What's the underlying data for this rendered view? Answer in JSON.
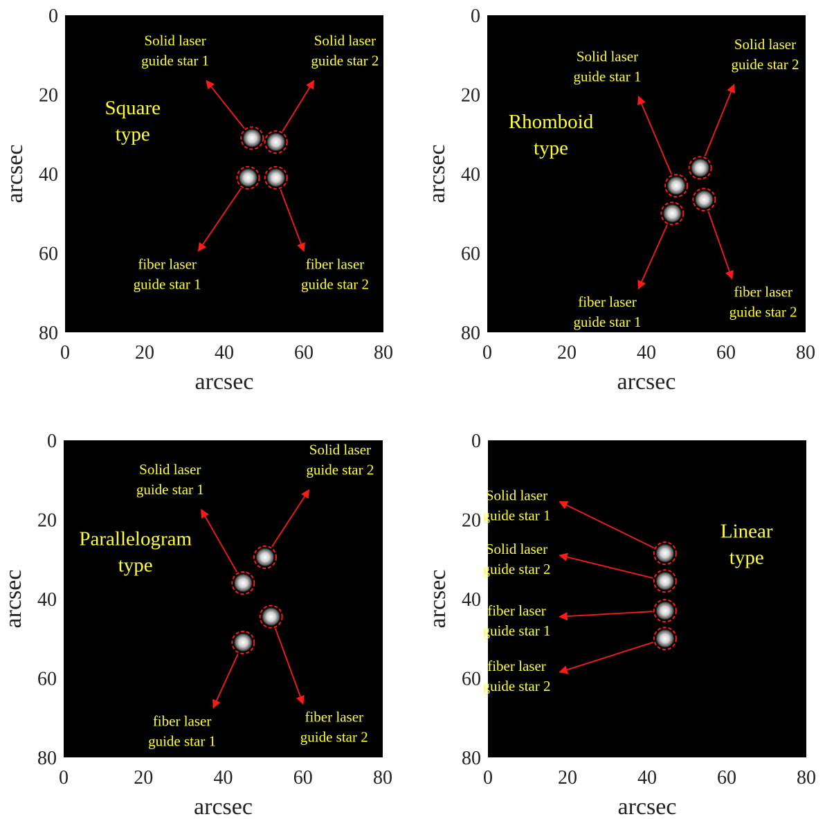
{
  "figure": {
    "colors": {
      "background": "#ffffff",
      "panel": "#000000",
      "label": "#ffff33",
      "arrow": "#ff1a1a",
      "axis_text": "#222222"
    },
    "xlabel": "arcsec",
    "ylabel": "arcsec",
    "xlim": [
      0,
      80
    ],
    "ylim": [
      0,
      80
    ],
    "ticks": [
      0,
      20,
      40,
      60,
      80
    ],
    "tick_labels": [
      "0",
      "20",
      "40",
      "60",
      "80"
    ],
    "y_axis_reversed": true
  },
  "chart_data": [
    {
      "type": "scatter",
      "title": "",
      "panel_label": [
        "Square",
        "type"
      ],
      "xlabel": "arcsec",
      "ylabel": "arcsec",
      "xlim": [
        0,
        80
      ],
      "ylim": [
        0,
        80
      ],
      "grid": false,
      "series": [
        {
          "name": "Solid laser guide star 1",
          "x": 47,
          "y": 31
        },
        {
          "name": "Solid laser guide star 2",
          "x": 53,
          "y": 32
        },
        {
          "name": "fiber laser guide star 1",
          "x": 46,
          "y": 41
        },
        {
          "name": "fiber laser guide star 2",
          "x": 53,
          "y": 41
        }
      ],
      "annotations": [
        {
          "text": [
            "Solid laser",
            "guide star 1"
          ],
          "x": 35.5,
          "y": 16.5
        },
        {
          "text": [
            "Solid laser",
            "guide star 2"
          ],
          "x": 62.5,
          "y": 16.5
        },
        {
          "text": [
            "fiber laser",
            "guide star 1"
          ],
          "x": 33.5,
          "y": 59.5
        },
        {
          "text": [
            "fiber laser",
            "guide star 2"
          ],
          "x": 60,
          "y": 59.5
        }
      ]
    },
    {
      "type": "scatter",
      "title": "",
      "panel_label": [
        "Rhomboid",
        "type"
      ],
      "xlabel": "arcsec",
      "ylabel": "arcsec",
      "xlim": [
        0,
        80
      ],
      "ylim": [
        0,
        80
      ],
      "grid": false,
      "series": [
        {
          "name": "Solid laser guide star 1",
          "x": 47.5,
          "y": 43
        },
        {
          "name": "Solid laser guide star 2",
          "x": 53.5,
          "y": 38.5
        },
        {
          "name": "fiber laser guide star 1",
          "x": 46.5,
          "y": 50
        },
        {
          "name": "fiber laser guide star 2",
          "x": 54.5,
          "y": 46.5
        }
      ],
      "annotations": [
        {
          "text": [
            "Solid laser",
            "guide star 1"
          ],
          "x": 38,
          "y": 20.5
        },
        {
          "text": [
            "Solid laser",
            "guide star 2"
          ],
          "x": 62,
          "y": 17.5
        },
        {
          "text": [
            "fiber laser",
            "guide star 1"
          ],
          "x": 38,
          "y": 69
        },
        {
          "text": [
            "fiber laser",
            "guide star 2"
          ],
          "x": 61.5,
          "y": 66.5
        }
      ]
    },
    {
      "type": "scatter",
      "title": "",
      "panel_label": [
        "Parallelogram",
        "type"
      ],
      "xlabel": "arcsec",
      "ylabel": "arcsec",
      "xlim": [
        0,
        80
      ],
      "ylim": [
        0,
        80
      ],
      "grid": false,
      "series": [
        {
          "name": "Solid laser guide star 1",
          "x": 45,
          "y": 36
        },
        {
          "name": "Solid laser guide star 2",
          "x": 50.5,
          "y": 29.5
        },
        {
          "name": "fiber laser guide star 1",
          "x": 45,
          "y": 51
        },
        {
          "name": "fiber laser guide star 2",
          "x": 52,
          "y": 44.5
        }
      ],
      "annotations": [
        {
          "text": [
            "Solid laser",
            "guide star 1"
          ],
          "x": 34.5,
          "y": 17.5
        },
        {
          "text": [
            "Solid laser",
            "guide star 2"
          ],
          "x": 61.5,
          "y": 12.5
        },
        {
          "text": [
            "fiber laser",
            "guide star 1"
          ],
          "x": 37.5,
          "y": 67.5
        },
        {
          "text": [
            "fiber laser",
            "guide star 2"
          ],
          "x": 60,
          "y": 66.5
        }
      ]
    },
    {
      "type": "scatter",
      "title": "",
      "panel_label": [
        "Linear",
        "type"
      ],
      "xlabel": "arcsec",
      "ylabel": "arcsec",
      "xlim": [
        0,
        80
      ],
      "ylim": [
        0,
        80
      ],
      "grid": false,
      "series": [
        {
          "name": "Solid laser guide star 1",
          "x": 44.5,
          "y": 28.5
        },
        {
          "name": "Solid laser guide star 2",
          "x": 44.5,
          "y": 35.5
        },
        {
          "name": "fiber laser guide star 1",
          "x": 44.5,
          "y": 43
        },
        {
          "name": "fiber laser guide star 2",
          "x": 44.5,
          "y": 50
        }
      ],
      "annotations": [
        {
          "text": [
            "Solid laser",
            "guide star 1"
          ],
          "x": 18,
          "y": 15.5
        },
        {
          "text": [
            "Solid laser",
            "guide star 2"
          ],
          "x": 18,
          "y": 29
        },
        {
          "text": [
            "fiber laser",
            "guide star 1"
          ],
          "x": 18,
          "y": 44.5
        },
        {
          "text": [
            "fiber laser",
            "guide star 2"
          ],
          "x": 18,
          "y": 58.5
        }
      ]
    }
  ]
}
